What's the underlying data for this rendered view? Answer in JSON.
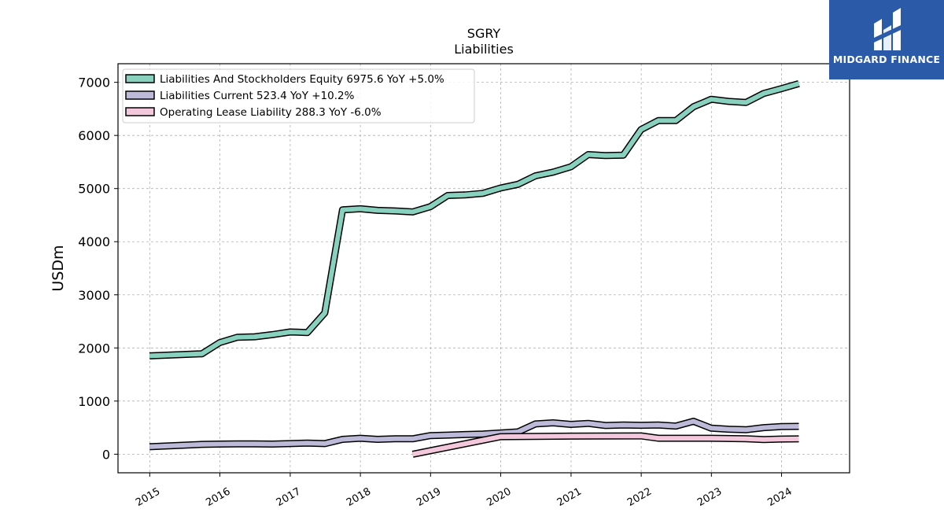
{
  "logo": {
    "text": "MIDGARD FINANCE",
    "background": "#2a5aa8"
  },
  "chart_data": {
    "type": "line",
    "title": "SGRY",
    "subtitle": "Liabilities",
    "xlabel": "",
    "ylabel": "USDm",
    "xlim": [
      "2014-07-20",
      "2024-12-20"
    ],
    "ylim": [
      -350,
      7350
    ],
    "x_ticks": [
      "2015",
      "2016",
      "2017",
      "2018",
      "2019",
      "2020",
      "2021",
      "2022",
      "2023",
      "2024"
    ],
    "y_ticks": [
      0,
      1000,
      2000,
      3000,
      4000,
      5000,
      6000,
      7000
    ],
    "grid": true,
    "legend_position": "top-left",
    "series": [
      {
        "name": "Liabilities And Stockholders Equity",
        "legend": "Liabilities And Stockholders Equity  6975.6 YoY +5.0%",
        "color": "#88d1bf",
        "points": [
          [
            "2014-12-31",
            1850
          ],
          [
            "2015-09-30",
            1890
          ],
          [
            "2015-12-31",
            2100
          ],
          [
            "2016-03-31",
            2200
          ],
          [
            "2016-06-30",
            2210
          ],
          [
            "2016-09-30",
            2250
          ],
          [
            "2016-12-31",
            2300
          ],
          [
            "2017-03-31",
            2290
          ],
          [
            "2017-06-30",
            2660
          ],
          [
            "2017-09-30",
            4600
          ],
          [
            "2017-12-31",
            4620
          ],
          [
            "2018-03-31",
            4590
          ],
          [
            "2018-06-30",
            4580
          ],
          [
            "2018-09-30",
            4560
          ],
          [
            "2018-12-31",
            4660
          ],
          [
            "2019-03-31",
            4870
          ],
          [
            "2019-06-30",
            4880
          ],
          [
            "2019-09-30",
            4910
          ],
          [
            "2019-12-31",
            5010
          ],
          [
            "2020-03-31",
            5080
          ],
          [
            "2020-06-30",
            5240
          ],
          [
            "2020-09-30",
            5310
          ],
          [
            "2020-12-31",
            5410
          ],
          [
            "2021-03-31",
            5640
          ],
          [
            "2021-06-30",
            5620
          ],
          [
            "2021-09-30",
            5630
          ],
          [
            "2021-12-31",
            6110
          ],
          [
            "2022-03-31",
            6280
          ],
          [
            "2022-06-30",
            6280
          ],
          [
            "2022-09-30",
            6540
          ],
          [
            "2022-12-31",
            6680
          ],
          [
            "2023-03-31",
            6640
          ],
          [
            "2023-06-30",
            6620
          ],
          [
            "2023-09-30",
            6790
          ],
          [
            "2023-12-31",
            6880
          ],
          [
            "2024-03-31",
            6975.6
          ]
        ]
      },
      {
        "name": "Liabilities Current",
        "legend": "Liabilities Current  523.4 YoY +10.2%",
        "color": "#bcbad8",
        "points": [
          [
            "2014-12-31",
            140
          ],
          [
            "2015-09-30",
            185
          ],
          [
            "2015-12-31",
            190
          ],
          [
            "2016-03-31",
            195
          ],
          [
            "2016-06-30",
            195
          ],
          [
            "2016-09-30",
            190
          ],
          [
            "2016-12-31",
            200
          ],
          [
            "2017-03-31",
            210
          ],
          [
            "2017-06-30",
            200
          ],
          [
            "2017-09-30",
            280
          ],
          [
            "2017-12-31",
            300
          ],
          [
            "2018-03-31",
            280
          ],
          [
            "2018-06-30",
            290
          ],
          [
            "2018-09-30",
            290
          ],
          [
            "2018-12-31",
            350
          ],
          [
            "2019-03-31",
            360
          ],
          [
            "2019-06-30",
            370
          ],
          [
            "2019-09-30",
            380
          ],
          [
            "2019-12-31",
            400
          ],
          [
            "2020-03-31",
            420
          ],
          [
            "2020-06-30",
            570
          ],
          [
            "2020-09-30",
            590
          ],
          [
            "2020-12-31",
            560
          ],
          [
            "2021-03-31",
            580
          ],
          [
            "2021-06-30",
            540
          ],
          [
            "2021-09-30",
            550
          ],
          [
            "2021-12-31",
            545
          ],
          [
            "2022-03-31",
            550
          ],
          [
            "2022-06-30",
            530
          ],
          [
            "2022-09-30",
            620
          ],
          [
            "2022-12-31",
            490
          ],
          [
            "2023-03-31",
            470
          ],
          [
            "2023-06-30",
            460
          ],
          [
            "2023-09-30",
            500
          ],
          [
            "2023-12-31",
            520
          ],
          [
            "2024-03-31",
            523.4
          ]
        ]
      },
      {
        "name": "Operating Lease Liability",
        "legend": "Operating Lease Liability  288.3 YoY -6.0%",
        "color": "#f4c8dc",
        "points": [
          [
            "2018-09-30",
            0
          ],
          [
            "2019-12-31",
            330
          ],
          [
            "2020-12-31",
            340
          ],
          [
            "2021-12-31",
            345
          ],
          [
            "2022-03-31",
            300
          ],
          [
            "2022-12-31",
            300
          ],
          [
            "2023-06-30",
            290
          ],
          [
            "2023-09-30",
            275
          ],
          [
            "2023-12-31",
            285
          ],
          [
            "2024-03-31",
            288.3
          ]
        ]
      }
    ]
  }
}
